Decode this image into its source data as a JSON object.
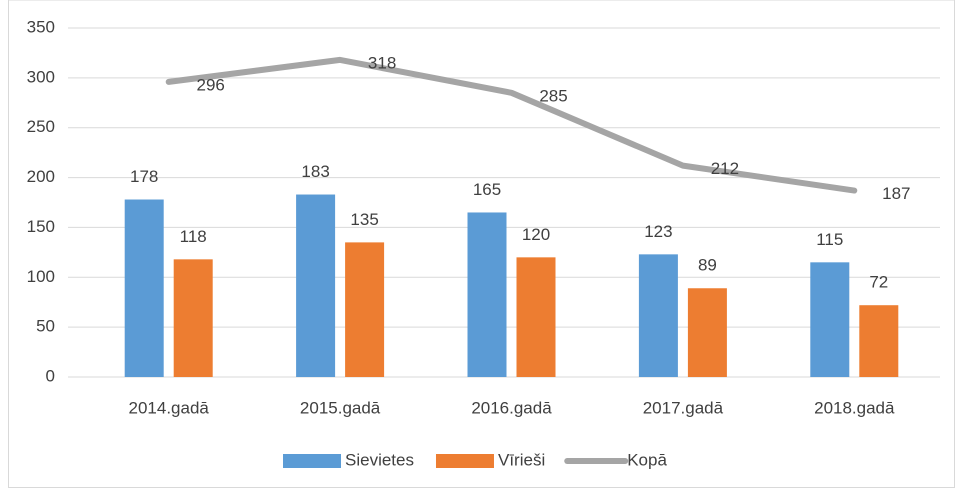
{
  "chart_data": {
    "type": "bar",
    "categories": [
      "2014.gadā",
      "2015.gadā",
      "2016.gadā",
      "2017.gadā",
      "2018.gadā"
    ],
    "series": [
      {
        "name": "Sievietes",
        "color": "#5b9bd5",
        "values": [
          178,
          183,
          165,
          123,
          115
        ]
      },
      {
        "name": "Vīrieši",
        "color": "#ed7d31",
        "values": [
          118,
          135,
          120,
          89,
          72
        ]
      },
      {
        "name": "Kopā",
        "type": "line",
        "color": "#a5a5a5",
        "values": [
          296,
          318,
          285,
          212,
          187
        ]
      }
    ],
    "ylim": [
      0,
      350
    ],
    "yticks": [
      0,
      50,
      100,
      150,
      200,
      250,
      300,
      350
    ],
    "grid": true,
    "legend": "bottom"
  }
}
